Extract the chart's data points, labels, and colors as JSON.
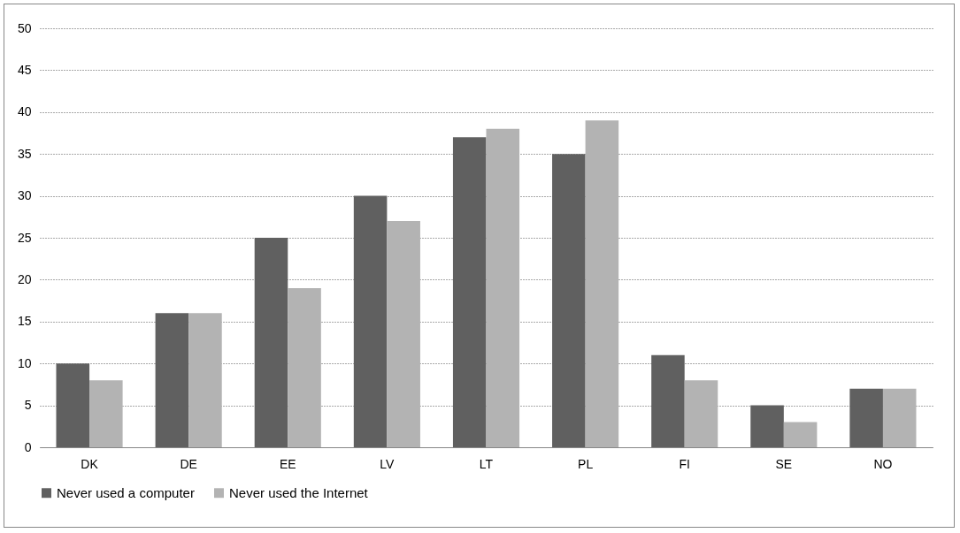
{
  "chart_data": {
    "type": "bar",
    "categories": [
      "DK",
      "DE",
      "EE",
      "LV",
      "LT",
      "PL",
      "FI",
      "SE",
      "NO"
    ],
    "series": [
      {
        "name": "Never used a computer",
        "color": "#606060",
        "values": [
          10,
          16,
          25,
          30,
          37,
          35,
          11,
          5,
          7
        ]
      },
      {
        "name": "Never used the Internet",
        "color": "#b3b3b3",
        "values": [
          8,
          16,
          19,
          27,
          38,
          39,
          8,
          3,
          7
        ]
      }
    ],
    "ylim": [
      0,
      50
    ],
    "yticks": [
      0,
      5,
      10,
      15,
      20,
      25,
      30,
      35,
      40,
      45,
      50
    ],
    "grid": "y",
    "legend": "bottom"
  }
}
